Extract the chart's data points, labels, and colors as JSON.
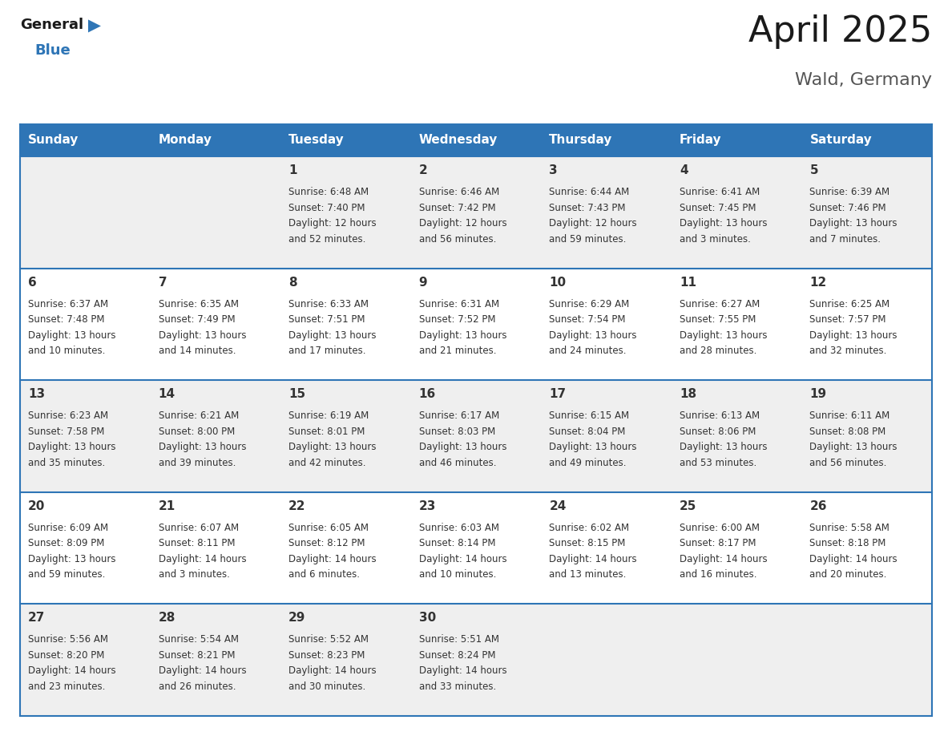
{
  "title": "April 2025",
  "subtitle": "Wald, Germany",
  "header_color": "#2E75B6",
  "header_text_color": "#FFFFFF",
  "cell_bg_odd": "#EFEFEF",
  "cell_bg_even": "#FFFFFF",
  "border_color": "#2E75B6",
  "text_color": "#333333",
  "days_of_week": [
    "Sunday",
    "Monday",
    "Tuesday",
    "Wednesday",
    "Thursday",
    "Friday",
    "Saturday"
  ],
  "calendar": [
    [
      {
        "day": "",
        "lines": []
      },
      {
        "day": "",
        "lines": []
      },
      {
        "day": "1",
        "lines": [
          "Sunrise: 6:48 AM",
          "Sunset: 7:40 PM",
          "Daylight: 12 hours",
          "and 52 minutes."
        ]
      },
      {
        "day": "2",
        "lines": [
          "Sunrise: 6:46 AM",
          "Sunset: 7:42 PM",
          "Daylight: 12 hours",
          "and 56 minutes."
        ]
      },
      {
        "day": "3",
        "lines": [
          "Sunrise: 6:44 AM",
          "Sunset: 7:43 PM",
          "Daylight: 12 hours",
          "and 59 minutes."
        ]
      },
      {
        "day": "4",
        "lines": [
          "Sunrise: 6:41 AM",
          "Sunset: 7:45 PM",
          "Daylight: 13 hours",
          "and 3 minutes."
        ]
      },
      {
        "day": "5",
        "lines": [
          "Sunrise: 6:39 AM",
          "Sunset: 7:46 PM",
          "Daylight: 13 hours",
          "and 7 minutes."
        ]
      }
    ],
    [
      {
        "day": "6",
        "lines": [
          "Sunrise: 6:37 AM",
          "Sunset: 7:48 PM",
          "Daylight: 13 hours",
          "and 10 minutes."
        ]
      },
      {
        "day": "7",
        "lines": [
          "Sunrise: 6:35 AM",
          "Sunset: 7:49 PM",
          "Daylight: 13 hours",
          "and 14 minutes."
        ]
      },
      {
        "day": "8",
        "lines": [
          "Sunrise: 6:33 AM",
          "Sunset: 7:51 PM",
          "Daylight: 13 hours",
          "and 17 minutes."
        ]
      },
      {
        "day": "9",
        "lines": [
          "Sunrise: 6:31 AM",
          "Sunset: 7:52 PM",
          "Daylight: 13 hours",
          "and 21 minutes."
        ]
      },
      {
        "day": "10",
        "lines": [
          "Sunrise: 6:29 AM",
          "Sunset: 7:54 PM",
          "Daylight: 13 hours",
          "and 24 minutes."
        ]
      },
      {
        "day": "11",
        "lines": [
          "Sunrise: 6:27 AM",
          "Sunset: 7:55 PM",
          "Daylight: 13 hours",
          "and 28 minutes."
        ]
      },
      {
        "day": "12",
        "lines": [
          "Sunrise: 6:25 AM",
          "Sunset: 7:57 PM",
          "Daylight: 13 hours",
          "and 32 minutes."
        ]
      }
    ],
    [
      {
        "day": "13",
        "lines": [
          "Sunrise: 6:23 AM",
          "Sunset: 7:58 PM",
          "Daylight: 13 hours",
          "and 35 minutes."
        ]
      },
      {
        "day": "14",
        "lines": [
          "Sunrise: 6:21 AM",
          "Sunset: 8:00 PM",
          "Daylight: 13 hours",
          "and 39 minutes."
        ]
      },
      {
        "day": "15",
        "lines": [
          "Sunrise: 6:19 AM",
          "Sunset: 8:01 PM",
          "Daylight: 13 hours",
          "and 42 minutes."
        ]
      },
      {
        "day": "16",
        "lines": [
          "Sunrise: 6:17 AM",
          "Sunset: 8:03 PM",
          "Daylight: 13 hours",
          "and 46 minutes."
        ]
      },
      {
        "day": "17",
        "lines": [
          "Sunrise: 6:15 AM",
          "Sunset: 8:04 PM",
          "Daylight: 13 hours",
          "and 49 minutes."
        ]
      },
      {
        "day": "18",
        "lines": [
          "Sunrise: 6:13 AM",
          "Sunset: 8:06 PM",
          "Daylight: 13 hours",
          "and 53 minutes."
        ]
      },
      {
        "day": "19",
        "lines": [
          "Sunrise: 6:11 AM",
          "Sunset: 8:08 PM",
          "Daylight: 13 hours",
          "and 56 minutes."
        ]
      }
    ],
    [
      {
        "day": "20",
        "lines": [
          "Sunrise: 6:09 AM",
          "Sunset: 8:09 PM",
          "Daylight: 13 hours",
          "and 59 minutes."
        ]
      },
      {
        "day": "21",
        "lines": [
          "Sunrise: 6:07 AM",
          "Sunset: 8:11 PM",
          "Daylight: 14 hours",
          "and 3 minutes."
        ]
      },
      {
        "day": "22",
        "lines": [
          "Sunrise: 6:05 AM",
          "Sunset: 8:12 PM",
          "Daylight: 14 hours",
          "and 6 minutes."
        ]
      },
      {
        "day": "23",
        "lines": [
          "Sunrise: 6:03 AM",
          "Sunset: 8:14 PM",
          "Daylight: 14 hours",
          "and 10 minutes."
        ]
      },
      {
        "day": "24",
        "lines": [
          "Sunrise: 6:02 AM",
          "Sunset: 8:15 PM",
          "Daylight: 14 hours",
          "and 13 minutes."
        ]
      },
      {
        "day": "25",
        "lines": [
          "Sunrise: 6:00 AM",
          "Sunset: 8:17 PM",
          "Daylight: 14 hours",
          "and 16 minutes."
        ]
      },
      {
        "day": "26",
        "lines": [
          "Sunrise: 5:58 AM",
          "Sunset: 8:18 PM",
          "Daylight: 14 hours",
          "and 20 minutes."
        ]
      }
    ],
    [
      {
        "day": "27",
        "lines": [
          "Sunrise: 5:56 AM",
          "Sunset: 8:20 PM",
          "Daylight: 14 hours",
          "and 23 minutes."
        ]
      },
      {
        "day": "28",
        "lines": [
          "Sunrise: 5:54 AM",
          "Sunset: 8:21 PM",
          "Daylight: 14 hours",
          "and 26 minutes."
        ]
      },
      {
        "day": "29",
        "lines": [
          "Sunrise: 5:52 AM",
          "Sunset: 8:23 PM",
          "Daylight: 14 hours",
          "and 30 minutes."
        ]
      },
      {
        "day": "30",
        "lines": [
          "Sunrise: 5:51 AM",
          "Sunset: 8:24 PM",
          "Daylight: 14 hours",
          "and 33 minutes."
        ]
      },
      {
        "day": "",
        "lines": []
      },
      {
        "day": "",
        "lines": []
      },
      {
        "day": "",
        "lines": []
      }
    ]
  ],
  "logo_general_color": "#1a1a1a",
  "logo_blue_color": "#2E75B6",
  "title_fontsize": 32,
  "subtitle_fontsize": 16,
  "header_fontsize": 11,
  "day_num_fontsize": 11,
  "cell_text_fontsize": 8.5
}
